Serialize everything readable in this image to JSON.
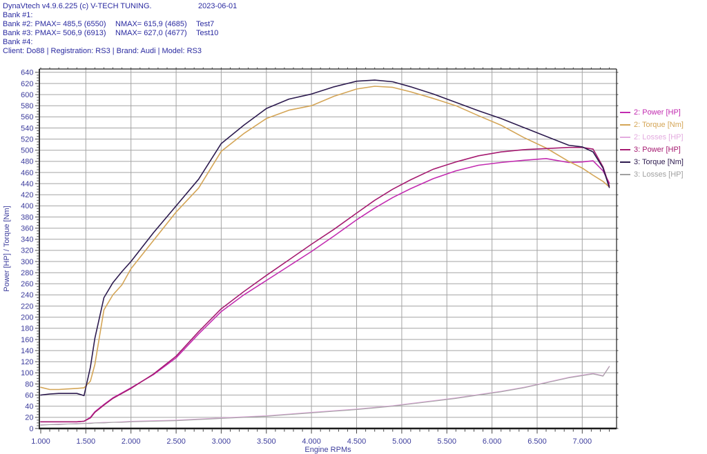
{
  "header": {
    "title": "DynaVtech v4.9.6.225 (c) V-TECH TUNING.",
    "date": "2023-06-01",
    "bank1": "Bank #1:",
    "bank2_main": "Bank #2: PMAX= 485,5 (6550)",
    "bank2_nmax": "NMAX= 615,9 (4685)",
    "bank2_test": "Test7",
    "bank3_main": "Bank #3: PMAX= 506,9 (6913)",
    "bank3_nmax": "NMAX= 627,0 (4677)",
    "bank3_test": "Test10",
    "bank4": "Bank #4:",
    "client_line": "Client: Do88 | Registration: RS3 | Brand: Audi | Model: RS3"
  },
  "colors": {
    "background": "#ffffff",
    "header_text": "#2a2aa0",
    "tick_text": "#3c3c9c",
    "grid": "#a3a3a3",
    "tick_mark": "#444444",
    "plot_border": "#1c1c1c"
  },
  "chart_data": {
    "type": "line",
    "title": "",
    "xlabel": "Engine RPMs",
    "ylabel": "Power [HP] / Torque [Nm]",
    "xlim": [
      985,
      7380
    ],
    "ylim": [
      0,
      646
    ],
    "grid": true,
    "legend_position": "right-outside",
    "x_ticks": {
      "values": [
        1000,
        1500,
        2000,
        2500,
        3000,
        3500,
        4000,
        4500,
        5000,
        5500,
        6000,
        6500,
        7000
      ],
      "labels": [
        "1.000",
        "1.500",
        "2.000",
        "2.500",
        "3.000",
        "3.500",
        "4.000",
        "4.500",
        "5.000",
        "5.500",
        "6.000",
        "6.500",
        "7.000"
      ],
      "minor_step": 100,
      "minor_max": 7300
    },
    "y_ticks": {
      "min": 0,
      "max": 640,
      "step": 20,
      "minor_step": 5
    },
    "x": [
      1000,
      1100,
      1200,
      1300,
      1400,
      1480,
      1550,
      1600,
      1700,
      1800,
      1900,
      2000,
      2250,
      2500,
      2750,
      3000,
      3250,
      3500,
      3750,
      4000,
      4250,
      4500,
      4700,
      4900,
      5100,
      5350,
      5600,
      5850,
      6100,
      6350,
      6600,
      6850,
      7000,
      7120,
      7230,
      7300
    ],
    "series": [
      {
        "id": "2-power",
        "name": "2: Power [HP]",
        "color": "#c22bb0",
        "width": 1.6,
        "values": [
          12,
          12,
          12,
          12,
          12,
          13,
          20,
          30,
          43,
          55,
          64,
          73,
          97,
          127,
          170,
          210,
          240,
          266,
          292,
          318,
          346,
          375,
          396,
          415,
          431,
          449,
          463,
          473,
          478,
          482,
          485,
          478,
          479,
          481,
          463,
          441
        ]
      },
      {
        "id": "2-torque",
        "name": "2: Torque [Nm]",
        "color": "#d4a556",
        "width": 1.6,
        "values": [
          74,
          70,
          70,
          71,
          72,
          73,
          85,
          115,
          213,
          240,
          258,
          287,
          338,
          389,
          432,
          498,
          530,
          557,
          572,
          580,
          597,
          610,
          615,
          613,
          605,
          593,
          580,
          562,
          545,
          523,
          504,
          480,
          468,
          455,
          444,
          434
        ]
      },
      {
        "id": "2-losses",
        "name": "2: Losses [HP]",
        "color": "#e3abdf",
        "width": 1.1,
        "values": [
          7,
          7,
          8,
          8,
          9,
          9,
          10,
          10,
          11,
          11,
          12,
          13,
          14,
          15,
          17,
          19,
          21,
          23,
          26,
          29,
          32,
          35,
          38,
          41,
          45,
          50,
          55,
          61,
          67,
          74,
          83,
          92,
          96,
          99,
          95,
          112
        ]
      },
      {
        "id": "3-power",
        "name": "3: Power [HP]",
        "color": "#a51a70",
        "width": 1.6,
        "values": [
          12,
          12,
          12,
          12,
          12,
          13,
          19,
          29,
          42,
          54,
          63,
          72,
          98,
          130,
          174,
          215,
          246,
          275,
          303,
          331,
          358,
          387,
          410,
          430,
          447,
          466,
          479,
          490,
          497,
          501,
          503,
          505,
          505,
          502,
          470,
          436
        ]
      },
      {
        "id": "3-torque",
        "name": "3: Torque [Nm]",
        "color": "#2c1a4e",
        "width": 1.6,
        "values": [
          60,
          62,
          63,
          63,
          63,
          59,
          110,
          162,
          235,
          262,
          282,
          300,
          352,
          400,
          448,
          512,
          545,
          575,
          592,
          601,
          614,
          624,
          626,
          623,
          614,
          601,
          586,
          571,
          557,
          541,
          525,
          509,
          506,
          497,
          468,
          433
        ]
      },
      {
        "id": "3-losses",
        "name": "3: Losses [HP]",
        "color": "#a0a0a0",
        "width": 1.1,
        "values": [
          6,
          7,
          7,
          8,
          8,
          9,
          9,
          10,
          10,
          11,
          11,
          12,
          13,
          14,
          16,
          18,
          20,
          22,
          25,
          28,
          31,
          34,
          37,
          40,
          44,
          49,
          54,
          60,
          66,
          73,
          82,
          91,
          95,
          98,
          94,
          111
        ]
      }
    ]
  }
}
